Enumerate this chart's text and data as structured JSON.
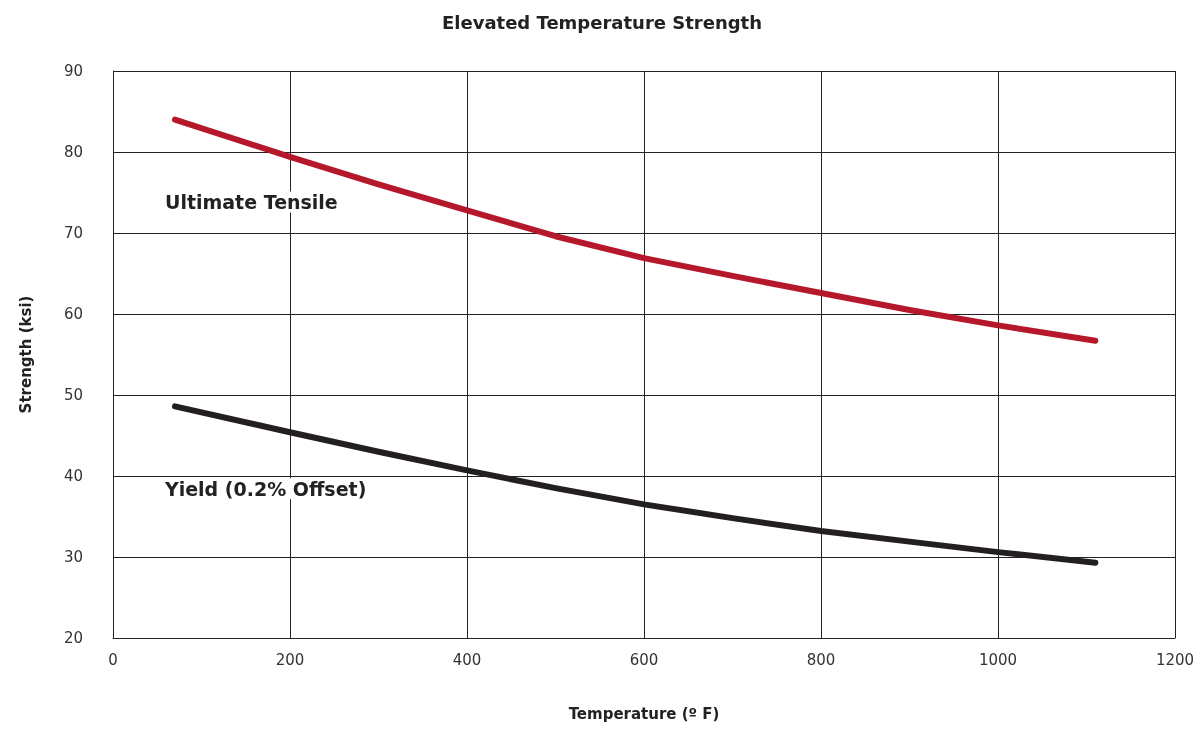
{
  "chart_data": {
    "type": "line",
    "title": "Elevated Temperature Strength",
    "xlabel": "Temperature (º F)",
    "ylabel": "Strength (ksi)",
    "xlim": [
      0,
      1200
    ],
    "xticks": [
      0,
      200,
      400,
      600,
      800,
      1000,
      1200
    ],
    "ylim": [
      20,
      90
    ],
    "yticks": [
      20,
      30,
      40,
      50,
      60,
      70,
      80,
      90
    ],
    "grid": true,
    "legend": false,
    "marker": "none",
    "line_style": "solid",
    "series": [
      {
        "name": "Ultimate Tensile",
        "color": "#b5182b",
        "x": [
          70,
          200,
          300,
          400,
          500,
          600,
          700,
          800,
          900,
          1000,
          1110
        ],
        "values": [
          84,
          79.4,
          76,
          72.8,
          69.6,
          66.9,
          64.7,
          62.6,
          60.5,
          58.6,
          56.7
        ]
      },
      {
        "name": "Yield (0.2% Offset)",
        "color": "#231f20",
        "x": [
          70,
          200,
          300,
          400,
          500,
          600,
          700,
          800,
          900,
          1000,
          1110
        ],
        "values": [
          48.6,
          45.4,
          43,
          40.7,
          38.5,
          36.5,
          34.8,
          33.2,
          31.9,
          30.6,
          29.3
        ]
      }
    ]
  }
}
